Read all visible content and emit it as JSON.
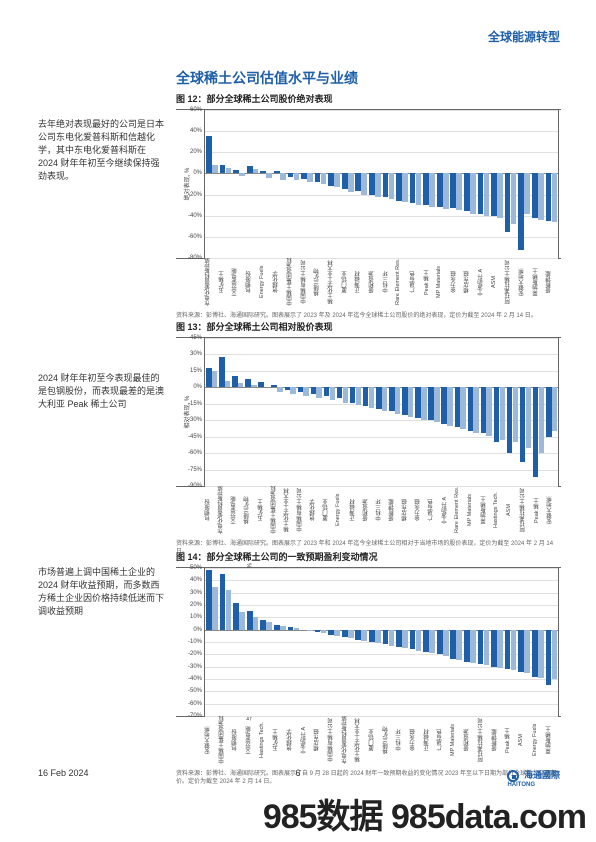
{
  "header": {
    "right_title": "全球能源转型"
  },
  "main_title": "全球稀土公司估值水平与业绩",
  "side_notes": {
    "n1": "去年绝对表现最好的公司是日本公司东电化爱普科斯和信越化学，其中东电化爱普科斯在 2024 财年年初至今继续保持强劲表现。",
    "n2": "2024 财年年初至今表现最佳的是包钢股份，而表现最差的是澳大利亚 Peak 稀土公司",
    "n3": "市场普遍上调中国稀土企业的 2024 财年收益预期，而多数西方稀土企业因价格持续低迷而下调收益预期"
  },
  "figures": {
    "f1": {
      "title": "图 12：部分全球稀土公司股价绝对表现",
      "y_label": "绝对表现, %",
      "ylim": [
        -80,
        60
      ],
      "yticks": [
        -80,
        -60,
        -40,
        -20,
        0,
        20,
        40,
        60
      ],
      "grid_color": "#e0e0e0",
      "zero_color": "#888888",
      "series_colors": [
        "#1f5fa8",
        "#9db9d9"
      ],
      "categories": [
        "东电化爱普科斯控股有限公司",
        "五矿稀土",
        "艾芬豪电能",
        "包钢股份",
        "Energy Fuels",
        "信越化学",
        "中国稀土集团资源科技公司",
        "中国稀有稀土公司",
        "格陵兰矿物",
        "稀土化学工业大林",
        "厦门钨业",
        "正海磁材",
        "盛和资源",
        "中科三环",
        "Rare Element Res.",
        "广晟有色",
        "Peak 稀土",
        "MP Materials",
        "金力永磁",
        "横店东磁",
        "宁波韵升 A",
        "ASM",
        "阿拉弗拉稀土公司",
        "安徽大地熊",
        "莱纳斯稀土",
        "盛新锂能"
      ],
      "s1": [
        35,
        8,
        3,
        7,
        2,
        2,
        -3,
        -5,
        -8,
        -12,
        -15,
        -17,
        -20,
        -22,
        -26,
        -28,
        -30,
        -32,
        -33,
        -36,
        -38,
        -40,
        -55,
        -72,
        -42,
        -45
      ],
      "s2": [
        8,
        5,
        -2,
        4,
        -4,
        -6,
        -6,
        -8,
        -10,
        -13,
        -18,
        -20,
        -22,
        -24,
        -27,
        -30,
        -32,
        -34,
        -35,
        -38,
        -40,
        -42,
        -48,
        -38,
        -44,
        -46
      ],
      "source": "资料来源：彭博社、海通国际研究。图表展示了 2023 年及 2024 年迄今全球稀土公司股价的绝对表现，定价为截至 2024 年 2 月 14 日。"
    },
    "f2": {
      "title": "图 13：部分全球稀土公司相对股价表现",
      "y_label": "相对表现, %",
      "ylim": [
        -90,
        45
      ],
      "yticks": [
        -90,
        -75,
        -60,
        -45,
        -30,
        -15,
        0,
        15,
        30,
        45
      ],
      "grid_color": "#e0e0e0",
      "zero_color": "#888888",
      "series_colors": [
        "#1f5fa8",
        "#9db9d9"
      ],
      "categories": [
        "包钢股份",
        "东电化爱普科斯控股有限公司",
        "艾芬豪电能",
        "格陵兰矿物",
        "五矿稀土",
        "中国稀土集团资源科技公司",
        "稀土化学工业大林",
        "中国稀有稀土公司",
        "信越化学",
        "厦门钨业",
        "Energy Fuels",
        "正海磁材",
        "盛和资源",
        "中科三环",
        "盛新锂能",
        "横店东磁",
        "金力永磁",
        "广晟有色",
        "宁波韵升 A",
        "Rare Element Res.",
        "MP Materials",
        "莱纳斯稀土",
        "Hastings Tech.",
        "ASM",
        "阿拉弗拉稀土公司",
        "Peak 稀土",
        "安徽大地熊"
      ],
      "s1": [
        18,
        28,
        10,
        8,
        5,
        2,
        -2,
        -4,
        -6,
        -8,
        -10,
        -14,
        -17,
        -20,
        -22,
        -25,
        -28,
        -30,
        -33,
        -36,
        -40,
        -42,
        -50,
        -60,
        -68,
        -82,
        -45
      ],
      "s2": [
        15,
        6,
        4,
        2,
        0,
        -4,
        -6,
        -8,
        -10,
        -12,
        -14,
        -16,
        -19,
        -22,
        -24,
        -27,
        -30,
        -32,
        -35,
        -38,
        -42,
        -44,
        -48,
        -50,
        -55,
        -60,
        -40
      ],
      "source": "资料来源：彭博社、海通国际研究。图表展示了 2023 年和 2024 年迄今全球稀土公司相对于当地市场的股价表现，定价为截至 2024 年 2 月 14 日。"
    },
    "f3": {
      "title": "图 14：部分全球稀土公司的一致预期盈利变动情况",
      "y_label": "与截至 2024 财年 9 月数据相比，一致预期盈利修正幅度, %",
      "ylim": [
        -70,
        50
      ],
      "yticks": [
        -70,
        -60,
        -50,
        -40,
        -30,
        -20,
        -10,
        0,
        10,
        20,
        30,
        40,
        50
      ],
      "grid_color": "#e0e0e0",
      "zero_color": "#888888",
      "series_colors": [
        "#1f5fa8",
        "#9db9d9"
      ],
      "categories": [
        "安徽大地熊",
        "中国稀土集团资源科技公司",
        "包钢股份",
        "艾芬豪电能",
        "Hastings Tech.",
        "五矿稀土",
        "信越化学",
        "宁波韵升 A",
        "横店东磁",
        "中国稀有稀土公司",
        "东电化爱普科斯控股有限公司",
        "稀土化学工业大林",
        "厦门钨业",
        "格陵兰矿物",
        "中科三环",
        "金力永磁",
        "正海磁材",
        "广晟有色",
        "MP Materials",
        "盛和资源",
        "阿拉弗拉稀土公司",
        "盛新锂能",
        "Peak 稀土",
        "ASM",
        "Energy Fuels",
        "莱纳斯稀土"
      ],
      "s1": [
        48,
        45,
        22,
        15,
        8,
        4,
        2,
        0,
        -2,
        -4,
        -6,
        -8,
        -10,
        -12,
        -14,
        -16,
        -18,
        -20,
        -24,
        -26,
        -28,
        -30,
        -32,
        -34,
        -38,
        -45
      ],
      "s2": [
        35,
        32,
        14,
        10,
        6,
        3,
        1,
        -1,
        -3,
        -5,
        -7,
        -9,
        -11,
        -13,
        -15,
        -17,
        -19,
        -21,
        -25,
        -27,
        -29,
        -31,
        -33,
        -35,
        -39,
        -40
      ],
      "source": "资料来源：彭博社、海通国际研究。图表展示了自 9 月 28 日起的 2024 财年一致预期收益的变化情况 2023 年至以下日期为部分全球稀土公司定价。定价为截至 2024 年 2 月 14 日。"
    }
  },
  "footer": {
    "date": "16 Feb 2024",
    "page": "6",
    "logo_main": "海通國際",
    "logo_sub": "HAITONG"
  },
  "watermark": "985数据  985data.com"
}
